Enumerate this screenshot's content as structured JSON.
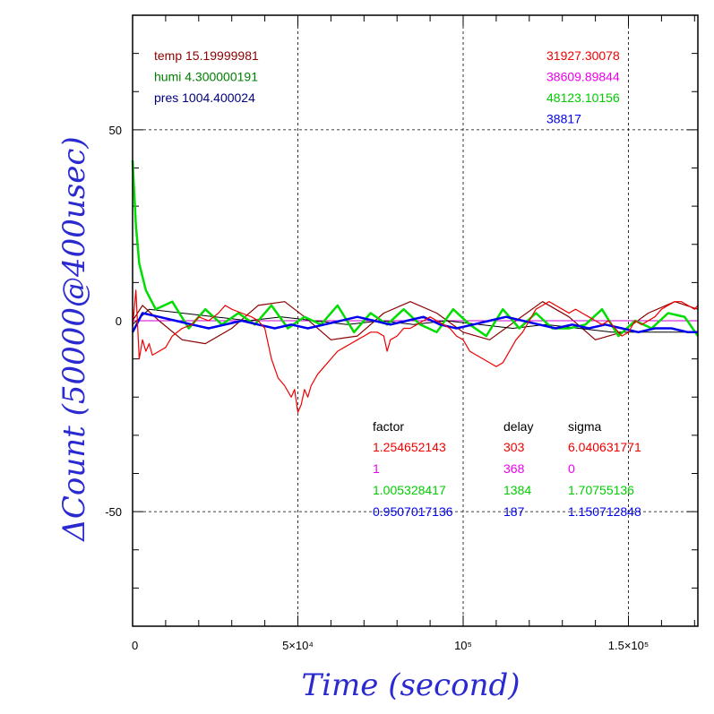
{
  "chart_data": {
    "type": "line",
    "xlabel": "Time (second)",
    "ylabel": "ΔCount (50000@400usec)",
    "xlim": [
      0,
      171000
    ],
    "ylim": [
      -80,
      80
    ],
    "x_ticks": [
      {
        "value": 0,
        "label": "0"
      },
      {
        "value": 50000,
        "label": "5×10⁴"
      },
      {
        "value": 100000,
        "label": "10⁵"
      },
      {
        "value": 150000,
        "label": "1.5×10⁵"
      }
    ],
    "y_ticks": [
      {
        "value": 50,
        "label": "50"
      },
      {
        "value": 0,
        "label": "0"
      },
      {
        "value": -50,
        "label": "-50"
      }
    ],
    "grid": true,
    "series": [
      {
        "color": "#8b0000",
        "width": 1.2,
        "x": [
          0,
          3000,
          8000,
          15000,
          22000,
          30000,
          38000,
          46000,
          52000,
          60000,
          68000,
          76000,
          84000,
          92000,
          100000,
          108000,
          116000,
          124000,
          132000,
          140000,
          148000,
          156000,
          164000,
          171000
        ],
        "y": [
          0,
          4,
          0,
          -5,
          -6,
          -2,
          4,
          5,
          1,
          -5,
          -4,
          2,
          5,
          2,
          -3,
          -5,
          0,
          5,
          1,
          -5,
          -3,
          2,
          5,
          3
        ]
      },
      {
        "color": "#cc00cc",
        "width": 1,
        "x": [
          0,
          171000
        ],
        "y": [
          0,
          0
        ]
      },
      {
        "color": "#000000",
        "width": 1,
        "x": [
          0,
          5000,
          15000,
          25000,
          35000,
          45000,
          55000,
          65000,
          75000,
          85000,
          95000,
          105000,
          115000,
          125000,
          135000,
          145000,
          155000,
          165000,
          171000
        ],
        "y": [
          -1,
          3,
          2,
          1,
          0,
          1,
          0,
          -1,
          0,
          -1,
          0,
          -1,
          -2,
          -1,
          -2,
          -3,
          -3,
          -3,
          -3
        ]
      },
      {
        "color": "#00dd00",
        "width": 2.5,
        "x": [
          0,
          1000,
          2000,
          4000,
          7000,
          12000,
          17000,
          22000,
          27000,
          32000,
          37000,
          42000,
          47000,
          52000,
          57000,
          62000,
          67000,
          72000,
          77000,
          82000,
          87000,
          92000,
          97000,
          102000,
          107000,
          112000,
          117000,
          122000,
          127000,
          132000,
          137000,
          142000,
          147000,
          152000,
          157000,
          162000,
          167000,
          171000
        ],
        "y": [
          42,
          25,
          15,
          8,
          3,
          5,
          -2,
          3,
          -1,
          2,
          -1,
          4,
          -2,
          1,
          -1,
          4,
          -3,
          2,
          -1,
          3,
          -1,
          -3,
          3,
          -1,
          -4,
          3,
          -2,
          2,
          -2,
          -2,
          -1,
          3,
          -4,
          0,
          -2,
          2,
          1,
          -4
        ]
      },
      {
        "color": "#0000ee",
        "width": 2.5,
        "x": [
          0,
          3000,
          8000,
          13000,
          18000,
          23000,
          28000,
          33000,
          38000,
          43000,
          48000,
          53000,
          58000,
          63000,
          68000,
          73000,
          78000,
          83000,
          88000,
          93000,
          98000,
          103000,
          108000,
          113000,
          118000,
          123000,
          128000,
          133000,
          138000,
          143000,
          148000,
          153000,
          158000,
          163000,
          168000,
          171000
        ],
        "y": [
          -3,
          2,
          1,
          0,
          -1,
          -2,
          -1,
          0,
          -1,
          -2,
          -1,
          -2,
          -1,
          0,
          1,
          0,
          -1,
          0,
          1,
          -1,
          -2,
          -1,
          0,
          1,
          0,
          -1,
          -2,
          -1,
          -2,
          -1,
          -2,
          -3,
          -2,
          -2,
          -3,
          -3
        ]
      },
      {
        "color": "#ee0000",
        "width": 1.2,
        "x": [
          0,
          1000,
          2000,
          3000,
          4000,
          5000,
          6000,
          8000,
          10000,
          12000,
          15000,
          18000,
          20000,
          23000,
          26000,
          28000,
          30000,
          33000,
          36000,
          38000,
          40000,
          42000,
          44000,
          46000,
          48000,
          49000,
          50000,
          51000,
          52000,
          53000,
          54000,
          56000,
          58000,
          60000,
          62000,
          64000,
          66000,
          68000,
          70000,
          72000,
          74000,
          76000,
          77000,
          78000,
          80000,
          82000,
          84000,
          86000,
          88000,
          90000,
          92000,
          94000,
          96000,
          98000,
          100000,
          102000,
          104000,
          106000,
          108000,
          110000,
          112000,
          114000,
          116000,
          118000,
          120000,
          122000,
          124000,
          126000,
          128000,
          130000,
          132000,
          134000,
          136000,
          138000,
          140000,
          142000,
          144000,
          146000,
          148000,
          150000,
          152000,
          154000,
          156000,
          158000,
          160000,
          162000,
          164000,
          166000,
          168000,
          170000,
          171000
        ],
        "y": [
          -2,
          8,
          -10,
          -5,
          -8,
          -6,
          -9,
          -8,
          -7,
          -4,
          -2,
          -1,
          1,
          0,
          2,
          4,
          3,
          2,
          1,
          0,
          -2,
          -10,
          -15,
          -17,
          -20,
          -18,
          -24,
          -22,
          -18,
          -20,
          -17,
          -14,
          -12,
          -10,
          -8,
          -7,
          -6,
          -5,
          -4,
          -3,
          -3,
          -4,
          -8,
          -5,
          -4,
          -2,
          -2,
          -1,
          0,
          1,
          0,
          -1,
          -2,
          -4,
          -5,
          -8,
          -9,
          -10,
          -11,
          -12,
          -11,
          -8,
          -5,
          -3,
          0,
          3,
          4,
          5,
          4,
          3,
          2,
          3,
          2,
          1,
          0,
          -1,
          0,
          -2,
          -4,
          -3,
          0,
          -1,
          0,
          1,
          3,
          4,
          5,
          5,
          4,
          3,
          4
        ]
      }
    ]
  },
  "legend_left": [
    {
      "text": "temp 15.19999981",
      "color": "#8b0000"
    },
    {
      "text": "humi 4.300000191",
      "color": "#008000"
    },
    {
      "text": "pres 1004.400024",
      "color": "#000080"
    }
  ],
  "legend_right": [
    {
      "text": "31927.30078",
      "color": "#ee0000"
    },
    {
      "text": "38609.89844",
      "color": "#ee00ee"
    },
    {
      "text": "48123.10156",
      "color": "#00cc00"
    },
    {
      "text": "38817",
      "color": "#0000ee"
    }
  ],
  "stats_table": {
    "headers": [
      "factor",
      "delay",
      "sigma"
    ],
    "rows": [
      {
        "color": "#ee0000",
        "cells": [
          "1.254652143",
          "303",
          "6.040631771"
        ]
      },
      {
        "color": "#ee00ee",
        "cells": [
          "1",
          "368",
          "0"
        ]
      },
      {
        "color": "#00cc00",
        "cells": [
          "1.005328417",
          "1384",
          "1.70755136"
        ]
      },
      {
        "color": "#0000ee",
        "cells": [
          "0.9507017136",
          "187",
          "1.150712848"
        ]
      }
    ]
  }
}
